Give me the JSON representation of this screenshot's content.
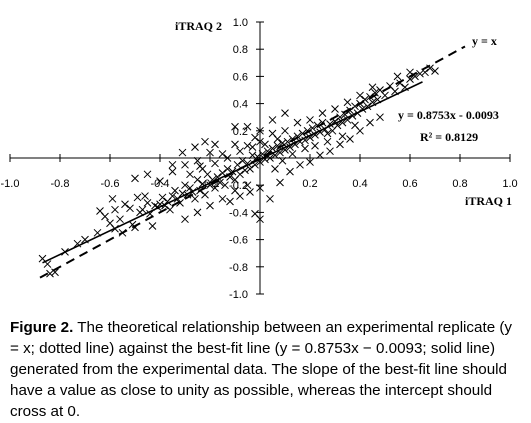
{
  "chart_data": {
    "type": "scatter",
    "xlabel": "iTRAQ 1",
    "ylabel": "iTRAQ 2",
    "xlim": [
      -1.0,
      1.0
    ],
    "ylim": [
      -1.0,
      1.0
    ],
    "xticks": [
      "-1.0",
      "-0.8",
      "-0.6",
      "-0.4",
      "-0.2",
      "0.2",
      "0.4",
      "0.6",
      "0.8",
      "1.0"
    ],
    "yticks": [
      "-1.0",
      "-0.8",
      "-0.6",
      "-0.4",
      "-0.2",
      "0.2",
      "0.4",
      "0.6",
      "0.8",
      "1.0"
    ],
    "grid": false,
    "marker": "x",
    "reference_line": {
      "label": "y = x",
      "slope": 1.0,
      "intercept": 0.0,
      "style": "dashed",
      "x_range": [
        -0.88,
        0.82
      ]
    },
    "fit_line": {
      "equation": "y = 0.8753x - 0.0093",
      "r2_label": "R² = 0.8129",
      "slope": 0.8753,
      "intercept": -0.0093,
      "style": "solid",
      "x_range": [
        -0.87,
        0.65
      ]
    },
    "points": [
      [
        -0.87,
        -0.74
      ],
      [
        -0.85,
        -0.78
      ],
      [
        -0.84,
        -0.85
      ],
      [
        -0.82,
        -0.84
      ],
      [
        -0.78,
        -0.69
      ],
      [
        -0.73,
        -0.63
      ],
      [
        -0.64,
        -0.39
      ],
      [
        -0.62,
        -0.43
      ],
      [
        -0.59,
        -0.3
      ],
      [
        -0.58,
        -0.38
      ],
      [
        -0.56,
        -0.45
      ],
      [
        -0.54,
        -0.34
      ],
      [
        -0.52,
        -0.37
      ],
      [
        -0.51,
        -0.49
      ],
      [
        -0.49,
        -0.29
      ],
      [
        -0.48,
        -0.4
      ],
      [
        -0.47,
        -0.38
      ],
      [
        -0.46,
        -0.28
      ],
      [
        -0.45,
        -0.33
      ],
      [
        -0.44,
        -0.41
      ],
      [
        -0.43,
        -0.5
      ],
      [
        -0.42,
        -0.35
      ],
      [
        -0.41,
        -0.36
      ],
      [
        -0.4,
        -0.34
      ],
      [
        -0.39,
        -0.29
      ],
      [
        -0.38,
        -0.35
      ],
      [
        -0.37,
        -0.32
      ],
      [
        -0.36,
        -0.38
      ],
      [
        -0.35,
        -0.28
      ],
      [
        -0.34,
        -0.24
      ],
      [
        -0.33,
        -0.3
      ],
      [
        -0.32,
        -0.33
      ],
      [
        -0.31,
        -0.26
      ],
      [
        -0.3,
        -0.2
      ],
      [
        -0.29,
        -0.27
      ],
      [
        -0.28,
        -0.22
      ],
      [
        -0.27,
        -0.25
      ],
      [
        -0.26,
        -0.3
      ],
      [
        -0.25,
        -0.16
      ],
      [
        -0.24,
        -0.24
      ],
      [
        -0.23,
        -0.19
      ],
      [
        -0.22,
        -0.27
      ],
      [
        -0.21,
        -0.12
      ],
      [
        -0.2,
        -0.2
      ],
      [
        -0.19,
        -0.16
      ],
      [
        -0.18,
        -0.22
      ],
      [
        -0.17,
        -0.14
      ],
      [
        -0.16,
        -0.18
      ],
      [
        -0.15,
        -0.11
      ],
      [
        -0.14,
        -0.2
      ],
      [
        -0.13,
        -0.08
      ],
      [
        -0.12,
        -0.14
      ],
      [
        -0.11,
        -0.1
      ],
      [
        -0.1,
        -0.16
      ],
      [
        -0.09,
        -0.05
      ],
      [
        -0.08,
        -0.12
      ],
      [
        -0.07,
        -0.02
      ],
      [
        -0.06,
        -0.09
      ],
      [
        -0.05,
        -0.04
      ],
      [
        -0.04,
        -0.08
      ],
      [
        -0.03,
        0.02
      ],
      [
        -0.02,
        -0.05
      ],
      [
        -0.01,
        0.01
      ],
      [
        0.0,
        -0.03
      ],
      [
        0.01,
        0.03
      ],
      [
        0.02,
        -0.01
      ],
      [
        0.03,
        0.05
      ],
      [
        0.04,
        0.0
      ],
      [
        0.05,
        0.07
      ],
      [
        0.06,
        0.02
      ],
      [
        0.07,
        0.09
      ],
      [
        0.08,
        0.04
      ],
      [
        0.09,
        0.11
      ],
      [
        0.1,
        0.06
      ],
      [
        0.11,
        0.12
      ],
      [
        0.12,
        0.08
      ],
      [
        0.13,
        0.14
      ],
      [
        0.14,
        0.1
      ],
      [
        0.15,
        0.16
      ],
      [
        0.16,
        0.12
      ],
      [
        0.17,
        0.18
      ],
      [
        0.18,
        0.13
      ],
      [
        0.19,
        0.2
      ],
      [
        0.2,
        0.15
      ],
      [
        0.21,
        0.22
      ],
      [
        0.22,
        0.17
      ],
      [
        0.23,
        0.24
      ],
      [
        0.24,
        0.19
      ],
      [
        0.25,
        0.26
      ],
      [
        0.26,
        0.21
      ],
      [
        0.27,
        0.18
      ],
      [
        0.28,
        0.25
      ],
      [
        0.29,
        0.2
      ],
      [
        0.3,
        0.27
      ],
      [
        0.31,
        0.24
      ],
      [
        0.32,
        0.3
      ],
      [
        0.33,
        0.26
      ],
      [
        0.34,
        0.32
      ],
      [
        0.35,
        0.28
      ],
      [
        0.36,
        0.35
      ],
      [
        0.37,
        0.31
      ],
      [
        0.38,
        0.38
      ],
      [
        0.39,
        0.33
      ],
      [
        0.4,
        0.4
      ],
      [
        0.41,
        0.36
      ],
      [
        0.42,
        0.43
      ],
      [
        0.43,
        0.38
      ],
      [
        0.44,
        0.45
      ],
      [
        0.45,
        0.41
      ],
      [
        0.46,
        0.48
      ],
      [
        0.47,
        0.43
      ],
      [
        0.48,
        0.5
      ],
      [
        0.5,
        0.46
      ],
      [
        0.52,
        0.53
      ],
      [
        0.54,
        0.49
      ],
      [
        0.56,
        0.55
      ],
      [
        0.58,
        0.52
      ],
      [
        0.6,
        0.58
      ],
      [
        0.62,
        0.6
      ],
      [
        0.64,
        0.62
      ],
      [
        0.66,
        0.63
      ],
      [
        0.68,
        0.66
      ],
      [
        0.7,
        0.64
      ],
      [
        -0.5,
        -0.15
      ],
      [
        -0.45,
        -0.12
      ],
      [
        -0.4,
        -0.17
      ],
      [
        -0.35,
        -0.1
      ],
      [
        -0.3,
        -0.05
      ],
      [
        -0.25,
        -0.02
      ],
      [
        -0.2,
        0.04
      ],
      [
        -0.15,
        0.03
      ],
      [
        -0.1,
        0.1
      ],
      [
        -0.05,
        0.09
      ],
      [
        0.0,
        0.12
      ],
      [
        0.05,
        0.18
      ],
      [
        0.1,
        0.2
      ],
      [
        0.15,
        0.26
      ],
      [
        -0.05,
        0.23
      ],
      [
        0.0,
        0.2
      ],
      [
        -0.12,
        -0.32
      ],
      [
        -0.08,
        -0.28
      ],
      [
        -0.04,
        -0.25
      ],
      [
        0.0,
        -0.22
      ],
      [
        0.04,
        -0.3
      ],
      [
        0.08,
        -0.18
      ],
      [
        0.12,
        -0.1
      ],
      [
        0.16,
        -0.05
      ],
      [
        0.2,
        -0.03
      ],
      [
        0.24,
        0.02
      ],
      [
        0.28,
        0.05
      ],
      [
        0.32,
        0.1
      ],
      [
        0.36,
        0.14
      ],
      [
        0.4,
        0.2
      ],
      [
        0.44,
        0.26
      ],
      [
        0.48,
        0.3
      ],
      [
        0.0,
        -0.45
      ],
      [
        -0.02,
        -0.41
      ],
      [
        -0.6,
        -0.48
      ],
      [
        -0.58,
        -0.52
      ],
      [
        -0.55,
        -0.55
      ],
      [
        -0.5,
        -0.51
      ],
      [
        -0.7,
        -0.6
      ],
      [
        -0.65,
        -0.55
      ],
      [
        -0.35,
        -0.05
      ],
      [
        -0.31,
        0.04
      ],
      [
        -0.26,
        0.08
      ],
      [
        -0.22,
        0.12
      ],
      [
        -0.18,
        0.1
      ],
      [
        -0.1,
        0.23
      ],
      [
        0.05,
        0.28
      ],
      [
        0.1,
        0.33
      ],
      [
        0.3,
        0.36
      ],
      [
        0.35,
        0.41
      ],
      [
        0.4,
        0.46
      ],
      [
        0.45,
        0.52
      ],
      [
        0.55,
        0.6
      ],
      [
        0.6,
        0.63
      ],
      [
        0.2,
        0.28
      ],
      [
        0.25,
        0.33
      ],
      [
        -0.05,
        -0.2
      ],
      [
        -0.1,
        -0.24
      ],
      [
        -0.15,
        -0.3
      ],
      [
        -0.2,
        -0.35
      ],
      [
        -0.25,
        -0.4
      ],
      [
        -0.3,
        -0.45
      ],
      [
        -0.28,
        -0.12
      ],
      [
        -0.24,
        -0.06
      ],
      [
        0.06,
        -0.08
      ],
      [
        0.09,
        -0.02
      ],
      [
        0.13,
        0.03
      ],
      [
        0.18,
        0.07
      ],
      [
        0.22,
        0.09
      ],
      [
        0.27,
        0.12
      ],
      [
        0.33,
        0.16
      ],
      [
        0.38,
        0.24
      ],
      [
        -0.08,
        0.05
      ],
      [
        -0.03,
        0.08
      ],
      [
        0.02,
        0.1
      ],
      [
        0.07,
        0.14
      ],
      [
        -0.13,
        0.0
      ],
      [
        -0.18,
        -0.04
      ],
      [
        -0.23,
        -0.08
      ],
      [
        -0.02,
        0.15
      ]
    ]
  },
  "caption": {
    "label": "Figure 2.",
    "text": " The theoretical relationship between an experimental replicate (y = x; dotted line) against the best-fit line (y = 0.8753x − 0.0093; solid line) generated from the experimental data. The slope of the best-fit line should have a value as close to unity as possible, whereas the intercept should cross at 0."
  }
}
